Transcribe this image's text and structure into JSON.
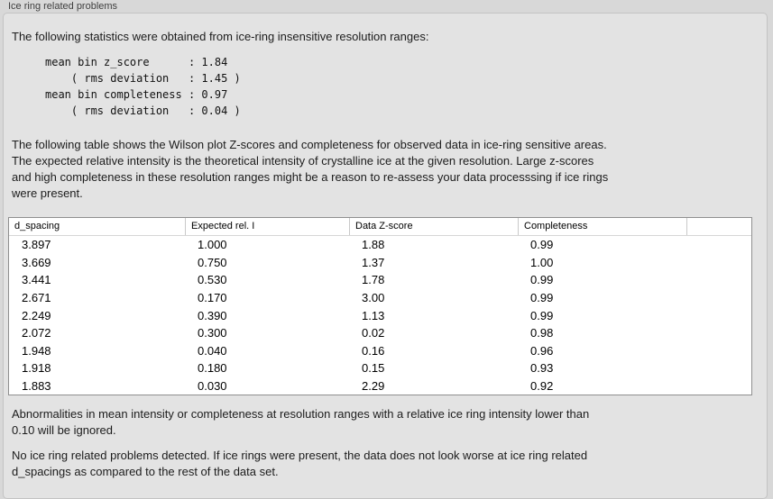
{
  "group": {
    "title": "Ice ring related problems"
  },
  "intro": "The following statistics were obtained from ice-ring insensitive resolution ranges:",
  "stats_block": "mean bin z_score      : 1.84\n    ( rms deviation   : 1.45 )\nmean bin completeness : 0.97\n    ( rms deviation   : 0.04 )",
  "table_description": "The following table shows the Wilson plot Z-scores and completeness for observed data in ice-ring sensitive areas.\nThe expected relative intensity is the theoretical intensity of crystalline ice at the given resolution. Large z-scores\nand high completeness in these resolution ranges might be a reason to re-assess your data processsing if ice rings\nwere present.",
  "table": {
    "columns": [
      "d_spacing",
      "Expected rel. I",
      "Data Z-score",
      "Completeness",
      ""
    ],
    "rows": [
      [
        "3.897",
        "1.000",
        "1.88",
        "0.99"
      ],
      [
        "3.669",
        "0.750",
        "1.37",
        "1.00"
      ],
      [
        "3.441",
        "0.530",
        "1.78",
        "0.99"
      ],
      [
        "2.671",
        "0.170",
        "3.00",
        "0.99"
      ],
      [
        "2.249",
        "0.390",
        "1.13",
        "0.99"
      ],
      [
        "2.072",
        "0.300",
        "0.02",
        "0.98"
      ],
      [
        "1.948",
        "0.040",
        "0.16",
        "0.96"
      ],
      [
        "1.918",
        "0.180",
        "0.15",
        "0.93"
      ],
      [
        "1.883",
        "0.030",
        "2.29",
        "0.92"
      ]
    ]
  },
  "ignore_note": "Abnormalities in mean intensity or completeness at resolution ranges with a relative ice ring intensity lower than\n0.10 will be ignored.",
  "conclusion": "No ice ring related problems detected. If ice rings were present, the data does not look worse at ice ring related\nd_spacings as compared to the rest of the data set.",
  "colors": {
    "outer_bg": "#d8d8d8",
    "panel_bg": "#e3e3e3",
    "panel_border": "#c3c3c3",
    "table_bg": "#ffffff",
    "table_border": "#8f8f8f",
    "text": "#1c1c1c"
  }
}
